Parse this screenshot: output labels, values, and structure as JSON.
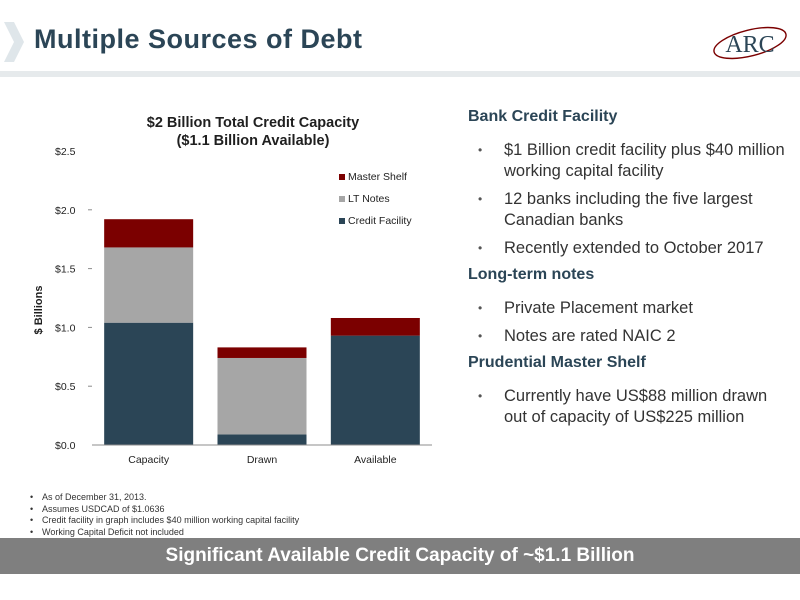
{
  "header": {
    "title": "Multiple Sources of Debt",
    "logo_text": "ARC"
  },
  "chart_data": {
    "type": "bar",
    "stacked": true,
    "title": "$2 Billion Total Credit Capacity",
    "subtitle": "($1.1 Billion Available)",
    "ylabel": "$ Billions",
    "ylim": [
      0,
      2.5
    ],
    "yticks": [
      0,
      0.5,
      1.0,
      1.5,
      2.0,
      2.5
    ],
    "ytick_labels": [
      "$0.0",
      "$0.5",
      "$1.0",
      "$1.5",
      "$2.0",
      "$2.5"
    ],
    "categories": [
      "Capacity",
      "Drawn",
      "Available"
    ],
    "series": [
      {
        "name": "Credit Facility",
        "color": "#2b4556",
        "values": [
          1.04,
          0.09,
          0.93
        ]
      },
      {
        "name": "LT Notes",
        "color": "#a6a6a6",
        "values": [
          0.64,
          0.65,
          0.0
        ]
      },
      {
        "name": "Master Shelf",
        "color": "#7b0000",
        "values": [
          0.24,
          0.09,
          0.15
        ]
      }
    ],
    "legend_position": "upper-right",
    "legend_order": [
      "Master Shelf",
      "LT Notes",
      "Credit Facility"
    ],
    "grid": false
  },
  "sections": [
    {
      "heading": "Bank Credit Facility",
      "bullets": [
        "$1 Billion credit facility plus $40 million working capital facility",
        "12 banks including the five largest Canadian banks",
        "Recently extended to October 2017"
      ]
    },
    {
      "heading": "Long-term notes",
      "bullets": [
        "Private Placement market",
        "Notes are rated NAIC 2"
      ]
    },
    {
      "heading": "Prudential Master Shelf",
      "bullets": [
        "Currently have US$88 million drawn out of capacity of US$225 million"
      ]
    }
  ],
  "footnotes": [
    "As of December 31, 2013.",
    "Assumes USDCAD of $1.0636",
    "Credit facility in graph includes $40 million working capital facility",
    "Working Capital Deficit not included"
  ],
  "banner": {
    "text": "Significant Available Credit Capacity of ~$1.1 Billion"
  }
}
